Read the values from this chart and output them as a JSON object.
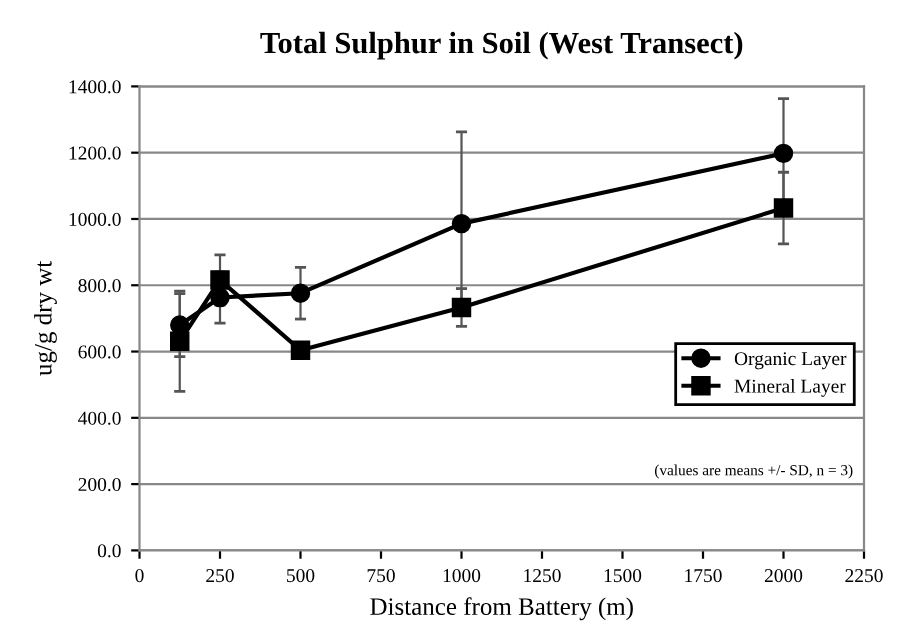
{
  "chart_data": {
    "type": "line",
    "title": "Total Sulphur in Soil (West Transect)",
    "xlabel": "Distance from Battery (m)",
    "ylabel": "ug/g dry wt",
    "x": [
      125,
      250,
      500,
      1000,
      2000
    ],
    "series": [
      {
        "name": "Organic Layer",
        "color": "#000000",
        "marker": "circle",
        "values": [
          680,
          763,
          776,
          986,
          1198
        ],
        "errors": [
          95,
          77,
          78,
          277,
          165
        ]
      },
      {
        "name": "Mineral Layer",
        "color": "#000000",
        "marker": "square",
        "values": [
          631,
          816,
          604,
          733,
          1033
        ],
        "errors": [
          151,
          76,
          null,
          57,
          108
        ]
      }
    ],
    "xlim": [
      0,
      2250
    ],
    "xticks": [
      0,
      250,
      500,
      750,
      1000,
      1250,
      1500,
      1750,
      2000,
      2250
    ],
    "ylim": [
      0,
      1400
    ],
    "yticks": [
      {
        "value": 0,
        "label": "0.0"
      },
      {
        "value": 200,
        "label": "200.0"
      },
      {
        "value": 400,
        "label": "400.0"
      },
      {
        "value": 600,
        "label": "600.0"
      },
      {
        "value": 800,
        "label": "800.0"
      },
      {
        "value": 1000,
        "label": "1000.0"
      },
      {
        "value": 1200,
        "label": "1200.0"
      },
      {
        "value": 1400,
        "label": "1400.0"
      }
    ],
    "grid": "y",
    "legend": "right",
    "line_style": "solid",
    "annotations": [
      "(values are means +/- SD, n = 3)"
    ]
  }
}
